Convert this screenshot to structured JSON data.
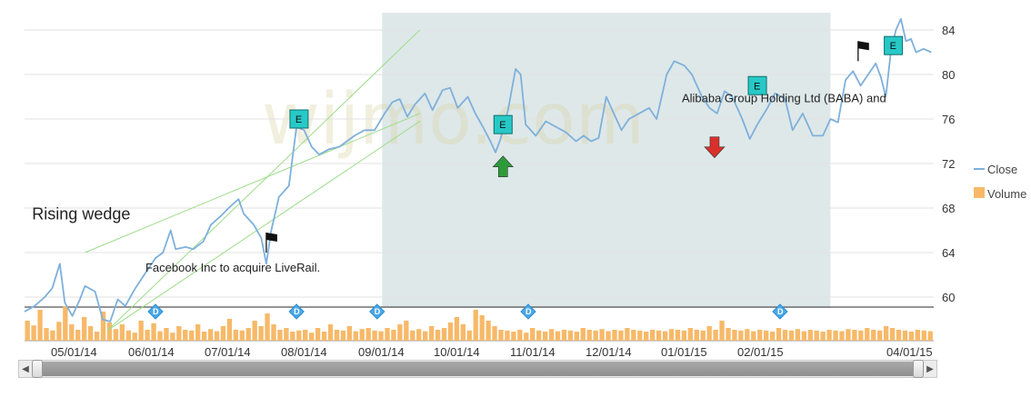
{
  "chart_data": {
    "type": "line",
    "series": [
      {
        "name": "Close",
        "color": "#7fb0db"
      },
      {
        "name": "Volume",
        "color": "#f7b969",
        "type": "bar"
      }
    ],
    "x_ticks": [
      "05/01/14",
      "06/01/14",
      "07/01/14",
      "08/01/14",
      "09/01/14",
      "10/01/14",
      "11/01/14",
      "12/01/14",
      "01/01/15",
      "02/01/15",
      "04/01/15"
    ],
    "y_ticks": [
      "60",
      "64",
      "68",
      "72",
      "76",
      "80",
      "84"
    ],
    "ylim": [
      56.5,
      85.5
    ],
    "xlim": [
      "2014-04-14",
      "2015-04-01"
    ],
    "close": [
      [
        "2014-04-14",
        58.7
      ],
      [
        "2014-04-18",
        59.2
      ],
      [
        "2014-04-22",
        60.0
      ],
      [
        "2014-04-25",
        60.8
      ],
      [
        "2014-04-28",
        63.0
      ],
      [
        "2014-04-30",
        59.5
      ],
      [
        "2014-05-03",
        58.3
      ],
      [
        "2014-05-06",
        59.8
      ],
      [
        "2014-05-08",
        61.0
      ],
      [
        "2014-05-12",
        60.5
      ],
      [
        "2014-05-15",
        58.0
      ],
      [
        "2014-05-18",
        57.8
      ],
      [
        "2014-05-21",
        59.8
      ],
      [
        "2014-05-24",
        59.2
      ],
      [
        "2014-05-28",
        60.8
      ],
      [
        "2014-06-02",
        62.5
      ],
      [
        "2014-06-05",
        63.5
      ],
      [
        "2014-06-08",
        64.0
      ],
      [
        "2014-06-11",
        66.0
      ],
      [
        "2014-06-13",
        64.3
      ],
      [
        "2014-06-17",
        64.5
      ],
      [
        "2014-06-20",
        64.3
      ],
      [
        "2014-06-24",
        65.0
      ],
      [
        "2014-06-27",
        66.5
      ],
      [
        "2014-07-01",
        67.3
      ],
      [
        "2014-07-04",
        68.0
      ],
      [
        "2014-07-08",
        68.8
      ],
      [
        "2014-07-10",
        67.5
      ],
      [
        "2014-07-14",
        66.5
      ],
      [
        "2014-07-17",
        65.3
      ],
      [
        "2014-07-19",
        63.0
      ],
      [
        "2014-07-21",
        66.0
      ],
      [
        "2014-07-24",
        69.0
      ],
      [
        "2014-07-28",
        70.0
      ],
      [
        "2014-07-31",
        75.3
      ],
      [
        "2014-08-03",
        75.0
      ],
      [
        "2014-08-06",
        73.5
      ],
      [
        "2014-08-09",
        72.8
      ],
      [
        "2014-08-13",
        73.3
      ],
      [
        "2014-08-17",
        73.5
      ],
      [
        "2014-08-20",
        74.0
      ],
      [
        "2014-08-23",
        74.5
      ],
      [
        "2014-08-27",
        75.0
      ],
      [
        "2014-08-31",
        75.0
      ],
      [
        "2014-09-04",
        76.5
      ],
      [
        "2014-09-07",
        77.5
      ],
      [
        "2014-09-10",
        77.8
      ],
      [
        "2014-09-13",
        76.2
      ],
      [
        "2014-09-16",
        77.3
      ],
      [
        "2014-09-20",
        78.3
      ],
      [
        "2014-09-23",
        76.8
      ],
      [
        "2014-09-27",
        78.6
      ],
      [
        "2014-09-30",
        78.8
      ],
      [
        "2014-10-03",
        77.0
      ],
      [
        "2014-10-07",
        78.0
      ],
      [
        "2014-10-10",
        76.5
      ],
      [
        "2014-10-13",
        75.3
      ],
      [
        "2014-10-16",
        74.0
      ],
      [
        "2014-10-18",
        73.0
      ],
      [
        "2014-10-20",
        74.2
      ],
      [
        "2014-10-23",
        76.8
      ],
      [
        "2014-10-26",
        80.5
      ],
      [
        "2014-10-28",
        80.0
      ],
      [
        "2014-10-30",
        75.5
      ],
      [
        "2014-11-03",
        74.5
      ],
      [
        "2014-11-07",
        75.8
      ],
      [
        "2014-11-11",
        75.3
      ],
      [
        "2014-11-15",
        74.8
      ],
      [
        "2014-11-19",
        74.0
      ],
      [
        "2014-11-22",
        74.5
      ],
      [
        "2014-11-25",
        74.0
      ],
      [
        "2014-11-28",
        74.3
      ],
      [
        "2014-12-01",
        78.0
      ],
      [
        "2014-12-04",
        76.5
      ],
      [
        "2014-12-07",
        75.0
      ],
      [
        "2014-12-10",
        76.0
      ],
      [
        "2014-12-14",
        76.5
      ],
      [
        "2014-12-18",
        77.0
      ],
      [
        "2014-12-21",
        76.0
      ],
      [
        "2014-12-25",
        80.0
      ],
      [
        "2014-12-28",
        81.2
      ],
      [
        "2015-01-01",
        80.8
      ],
      [
        "2015-01-04",
        80.0
      ],
      [
        "2015-01-08",
        78.0
      ],
      [
        "2015-01-11",
        77.0
      ],
      [
        "2015-01-14",
        76.5
      ],
      [
        "2015-01-17",
        78.5
      ],
      [
        "2015-01-20",
        78.0
      ],
      [
        "2015-01-24",
        76.0
      ],
      [
        "2015-01-27",
        74.2
      ],
      [
        "2015-01-30",
        75.5
      ],
      [
        "2015-02-03",
        77.0
      ],
      [
        "2015-02-06",
        78.3
      ],
      [
        "2015-02-10",
        77.8
      ],
      [
        "2015-02-13",
        75.0
      ],
      [
        "2015-02-17",
        76.5
      ],
      [
        "2015-02-21",
        74.5
      ],
      [
        "2015-02-25",
        74.5
      ],
      [
        "2015-02-28",
        76.0
      ],
      [
        "2015-03-03",
        75.7
      ],
      [
        "2015-03-06",
        79.5
      ],
      [
        "2015-03-09",
        80.3
      ],
      [
        "2015-03-12",
        79.0
      ],
      [
        "2015-03-15",
        80.0
      ],
      [
        "2015-03-18",
        81.0
      ],
      [
        "2015-03-20",
        79.8
      ],
      [
        "2015-03-22",
        78.0
      ],
      [
        "2015-03-24",
        82.0
      ],
      [
        "2015-03-26",
        84.0
      ],
      [
        "2015-03-28",
        85.0
      ],
      [
        "2015-03-30",
        83.0
      ],
      [
        "2015-04-01",
        83.2
      ],
      [
        "2015-04-03",
        82.0
      ],
      [
        "2015-04-06",
        82.3
      ],
      [
        "2015-04-09",
        82.0
      ]
    ],
    "volume_relative": [
      0.55,
      0.42,
      0.85,
      0.35,
      0.28,
      0.52,
      0.95,
      0.45,
      0.3,
      0.65,
      0.4,
      0.25,
      0.8,
      0.5,
      0.32,
      0.45,
      0.28,
      0.22,
      0.55,
      0.3,
      0.48,
      0.26,
      0.35,
      0.22,
      0.4,
      0.3,
      0.28,
      0.45,
      0.25,
      0.32,
      0.26,
      0.4,
      0.6,
      0.3,
      0.28,
      0.35,
      0.55,
      0.4,
      0.75,
      0.45,
      0.3,
      0.35,
      0.25,
      0.28,
      0.3,
      0.22,
      0.35,
      0.25,
      0.45,
      0.3,
      0.28,
      0.4,
      0.26,
      0.32,
      0.35,
      0.28,
      0.26,
      0.35,
      0.3,
      0.45,
      0.55,
      0.28,
      0.32,
      0.26,
      0.4,
      0.3,
      0.35,
      0.5,
      0.65,
      0.45,
      0.28,
      0.85,
      0.7,
      0.55,
      0.4,
      0.3,
      0.28,
      0.25,
      0.3,
      0.22,
      0.35,
      0.28,
      0.25,
      0.32,
      0.26,
      0.3,
      0.28,
      0.25,
      0.35,
      0.3,
      0.28,
      0.32,
      0.26,
      0.3,
      0.28,
      0.35,
      0.3,
      0.28,
      0.25,
      0.3,
      0.28,
      0.26,
      0.32,
      0.3,
      0.28,
      0.35,
      0.3,
      0.28,
      0.4,
      0.3,
      0.55,
      0.35,
      0.3,
      0.28,
      0.32,
      0.26,
      0.3,
      0.28,
      0.25,
      0.35,
      0.3,
      0.28,
      0.32,
      0.26,
      0.3,
      0.28,
      0.25,
      0.3,
      0.28,
      0.26,
      0.32,
      0.3,
      0.28,
      0.35,
      0.3,
      0.28,
      0.4,
      0.35,
      0.3,
      0.28,
      0.25,
      0.3,
      0.28,
      0.26
    ],
    "highlight_range": [
      "2014-09-03",
      "2015-02-28"
    ],
    "wedge_lines": [
      [
        [
          "2014-05-17",
          57.0
        ],
        [
          "2014-09-18",
          84.0
        ]
      ],
      [
        [
          "2014-05-08",
          64.0
        ],
        [
          "2014-09-18",
          76.5
        ]
      ],
      [
        [
          "2014-05-17",
          57.0
        ],
        [
          "2014-09-18",
          75.8
        ]
      ]
    ],
    "event_markers": [
      {
        "type": "E",
        "date": "2014-08-01",
        "value": 76.0
      },
      {
        "type": "E",
        "date": "2014-10-21",
        "value": 75.5
      },
      {
        "type": "E",
        "date": "2015-01-30",
        "value": 79.0
      },
      {
        "type": "E",
        "date": "2015-03-25",
        "value": 82.6
      }
    ],
    "flag_markers": [
      {
        "date": "2014-07-19",
        "value": 64.0
      },
      {
        "date": "2015-03-11",
        "value": 81.2
      }
    ],
    "arrow_markers": [
      {
        "direction": "up",
        "date": "2014-10-21",
        "value": 71.7,
        "color": "#2e9b3a"
      },
      {
        "direction": "down",
        "date": "2015-01-13",
        "value": 73.5,
        "color": "#d9302b"
      }
    ],
    "dividend_markers": [
      {
        "date": "2014-06-05"
      },
      {
        "date": "2014-07-31"
      },
      {
        "date": "2014-09-01"
      },
      {
        "date": "2014-10-31"
      },
      {
        "date": "2015-02-08"
      }
    ],
    "annotations": [
      {
        "text": "Facebook Inc to acquire LiveRail.",
        "date": "2014-06-01",
        "value": 62.3
      },
      {
        "text": "Alibaba Group Holding Ltd (BABA) and",
        "date": "2014-12-31",
        "value": 77.5
      },
      {
        "text": "Rising wedge",
        "date": "2014-04-17",
        "value": 67.0,
        "kind": "pattern"
      }
    ],
    "watermark": "wijmo.com",
    "legend": {
      "position": "right"
    },
    "grid": true
  }
}
